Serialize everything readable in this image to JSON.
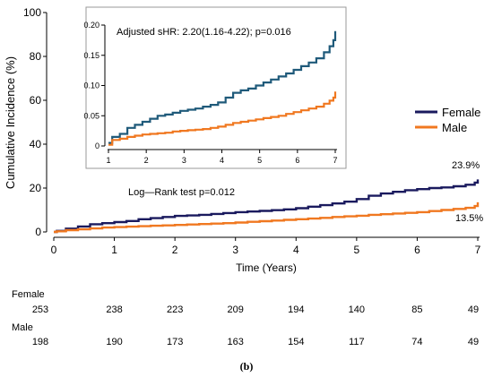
{
  "caption": "(b)",
  "colors": {
    "female": "#1a1a5e",
    "male": "#f07820",
    "inset_female": "#1f5a7a"
  },
  "chart_data": [
    {
      "type": "line",
      "role": "main",
      "xlabel": "Time (Years)",
      "ylabel": "Cumulative Incidence (%)",
      "xlim": [
        0,
        7
      ],
      "ylim": [
        0,
        100
      ],
      "xticks": [
        0,
        1,
        2,
        3,
        4,
        5,
        6,
        7
      ],
      "yticks": [
        0,
        20,
        40,
        60,
        80,
        100
      ],
      "legend": {
        "position": "right",
        "entries": [
          "Female",
          "Male"
        ]
      },
      "annotation": "Log—Rank test p=0.012",
      "end_labels": {
        "female": "23.9%",
        "male": "13.5%"
      },
      "series": [
        {
          "name": "Female",
          "x": [
            0,
            0.05,
            0.2,
            0.4,
            0.6,
            0.8,
            1.0,
            1.2,
            1.4,
            1.6,
            1.8,
            2.0,
            2.2,
            2.4,
            2.6,
            2.8,
            3.0,
            3.2,
            3.4,
            3.6,
            3.8,
            4.0,
            4.2,
            4.4,
            4.6,
            4.8,
            5.0,
            5.2,
            5.4,
            5.6,
            5.8,
            6.0,
            6.2,
            6.4,
            6.6,
            6.8,
            6.95,
            7.0
          ],
          "y": [
            0,
            0.5,
            1.5,
            2.5,
            3.5,
            4.0,
            4.5,
            5.0,
            5.8,
            6.3,
            6.8,
            7.3,
            7.5,
            7.8,
            8.2,
            8.6,
            9.0,
            9.3,
            9.6,
            9.9,
            10.3,
            10.8,
            11.5,
            12.2,
            13.0,
            13.8,
            15.0,
            16.5,
            17.5,
            18.3,
            19.0,
            19.5,
            20.0,
            20.3,
            20.8,
            21.5,
            22.5,
            23.9
          ]
        },
        {
          "name": "Male",
          "x": [
            0,
            0.05,
            0.2,
            0.4,
            0.6,
            0.8,
            1.0,
            1.2,
            1.4,
            1.6,
            1.8,
            2.0,
            2.2,
            2.4,
            2.6,
            2.8,
            3.0,
            3.2,
            3.4,
            3.6,
            3.8,
            4.0,
            4.2,
            4.4,
            4.6,
            4.8,
            5.0,
            5.2,
            5.4,
            5.6,
            5.8,
            6.0,
            6.2,
            6.4,
            6.6,
            6.8,
            6.95,
            7.0
          ],
          "y": [
            0,
            0.3,
            0.8,
            1.2,
            1.6,
            2.0,
            2.2,
            2.4,
            2.6,
            2.8,
            3.0,
            3.2,
            3.4,
            3.6,
            3.8,
            4.0,
            4.3,
            4.6,
            4.9,
            5.2,
            5.5,
            5.8,
            6.1,
            6.4,
            6.8,
            7.1,
            7.4,
            7.8,
            8.1,
            8.4,
            8.7,
            9.0,
            9.5,
            10.0,
            10.5,
            11.0,
            11.8,
            13.5
          ]
        }
      ]
    },
    {
      "type": "line",
      "role": "inset",
      "title": "Adjusted sHR: 2.20(1.16-4.22); p=0.016",
      "xlim": [
        1,
        7
      ],
      "ylim": [
        0,
        0.2
      ],
      "xticks": [
        1,
        2,
        3,
        4,
        5,
        6,
        7
      ],
      "yticks": [
        0,
        0.05,
        0.1,
        0.15,
        0.2
      ],
      "ytick_labels": [
        "0",
        "0.05",
        "0.10",
        "0.15",
        "0.20"
      ],
      "series": [
        {
          "name": "Female",
          "x": [
            1.0,
            1.1,
            1.3,
            1.5,
            1.7,
            1.9,
            2.1,
            2.3,
            2.5,
            2.7,
            2.9,
            3.1,
            3.3,
            3.5,
            3.7,
            3.9,
            4.1,
            4.3,
            4.5,
            4.7,
            4.9,
            5.1,
            5.3,
            5.5,
            5.7,
            5.9,
            6.1,
            6.3,
            6.5,
            6.7,
            6.85,
            6.95,
            7.0
          ],
          "y": [
            0.005,
            0.015,
            0.02,
            0.03,
            0.035,
            0.04,
            0.045,
            0.05,
            0.052,
            0.055,
            0.058,
            0.06,
            0.062,
            0.065,
            0.068,
            0.072,
            0.08,
            0.088,
            0.092,
            0.095,
            0.1,
            0.105,
            0.11,
            0.115,
            0.12,
            0.126,
            0.132,
            0.138,
            0.145,
            0.155,
            0.165,
            0.175,
            0.19
          ]
        },
        {
          "name": "Male",
          "x": [
            1.0,
            1.1,
            1.3,
            1.5,
            1.7,
            1.9,
            2.1,
            2.3,
            2.5,
            2.7,
            2.9,
            3.1,
            3.3,
            3.5,
            3.7,
            3.9,
            4.1,
            4.3,
            4.5,
            4.7,
            4.9,
            5.1,
            5.3,
            5.5,
            5.7,
            5.9,
            6.1,
            6.3,
            6.5,
            6.7,
            6.85,
            6.95,
            7.0
          ],
          "y": [
            0.002,
            0.01,
            0.012,
            0.015,
            0.017,
            0.019,
            0.02,
            0.021,
            0.022,
            0.024,
            0.025,
            0.026,
            0.027,
            0.028,
            0.03,
            0.032,
            0.035,
            0.038,
            0.04,
            0.042,
            0.044,
            0.046,
            0.048,
            0.05,
            0.053,
            0.056,
            0.059,
            0.062,
            0.065,
            0.07,
            0.075,
            0.08,
            0.09
          ]
        }
      ]
    },
    {
      "type": "table",
      "role": "risk-table",
      "rows": [
        {
          "label": "Female",
          "values": [
            "253",
            "238",
            "223",
            "209",
            "194",
            "140",
            "85",
            "49"
          ]
        },
        {
          "label": "Male",
          "values": [
            "198",
            "190",
            "173",
            "163",
            "154",
            "117",
            "74",
            "49"
          ]
        }
      ]
    }
  ]
}
